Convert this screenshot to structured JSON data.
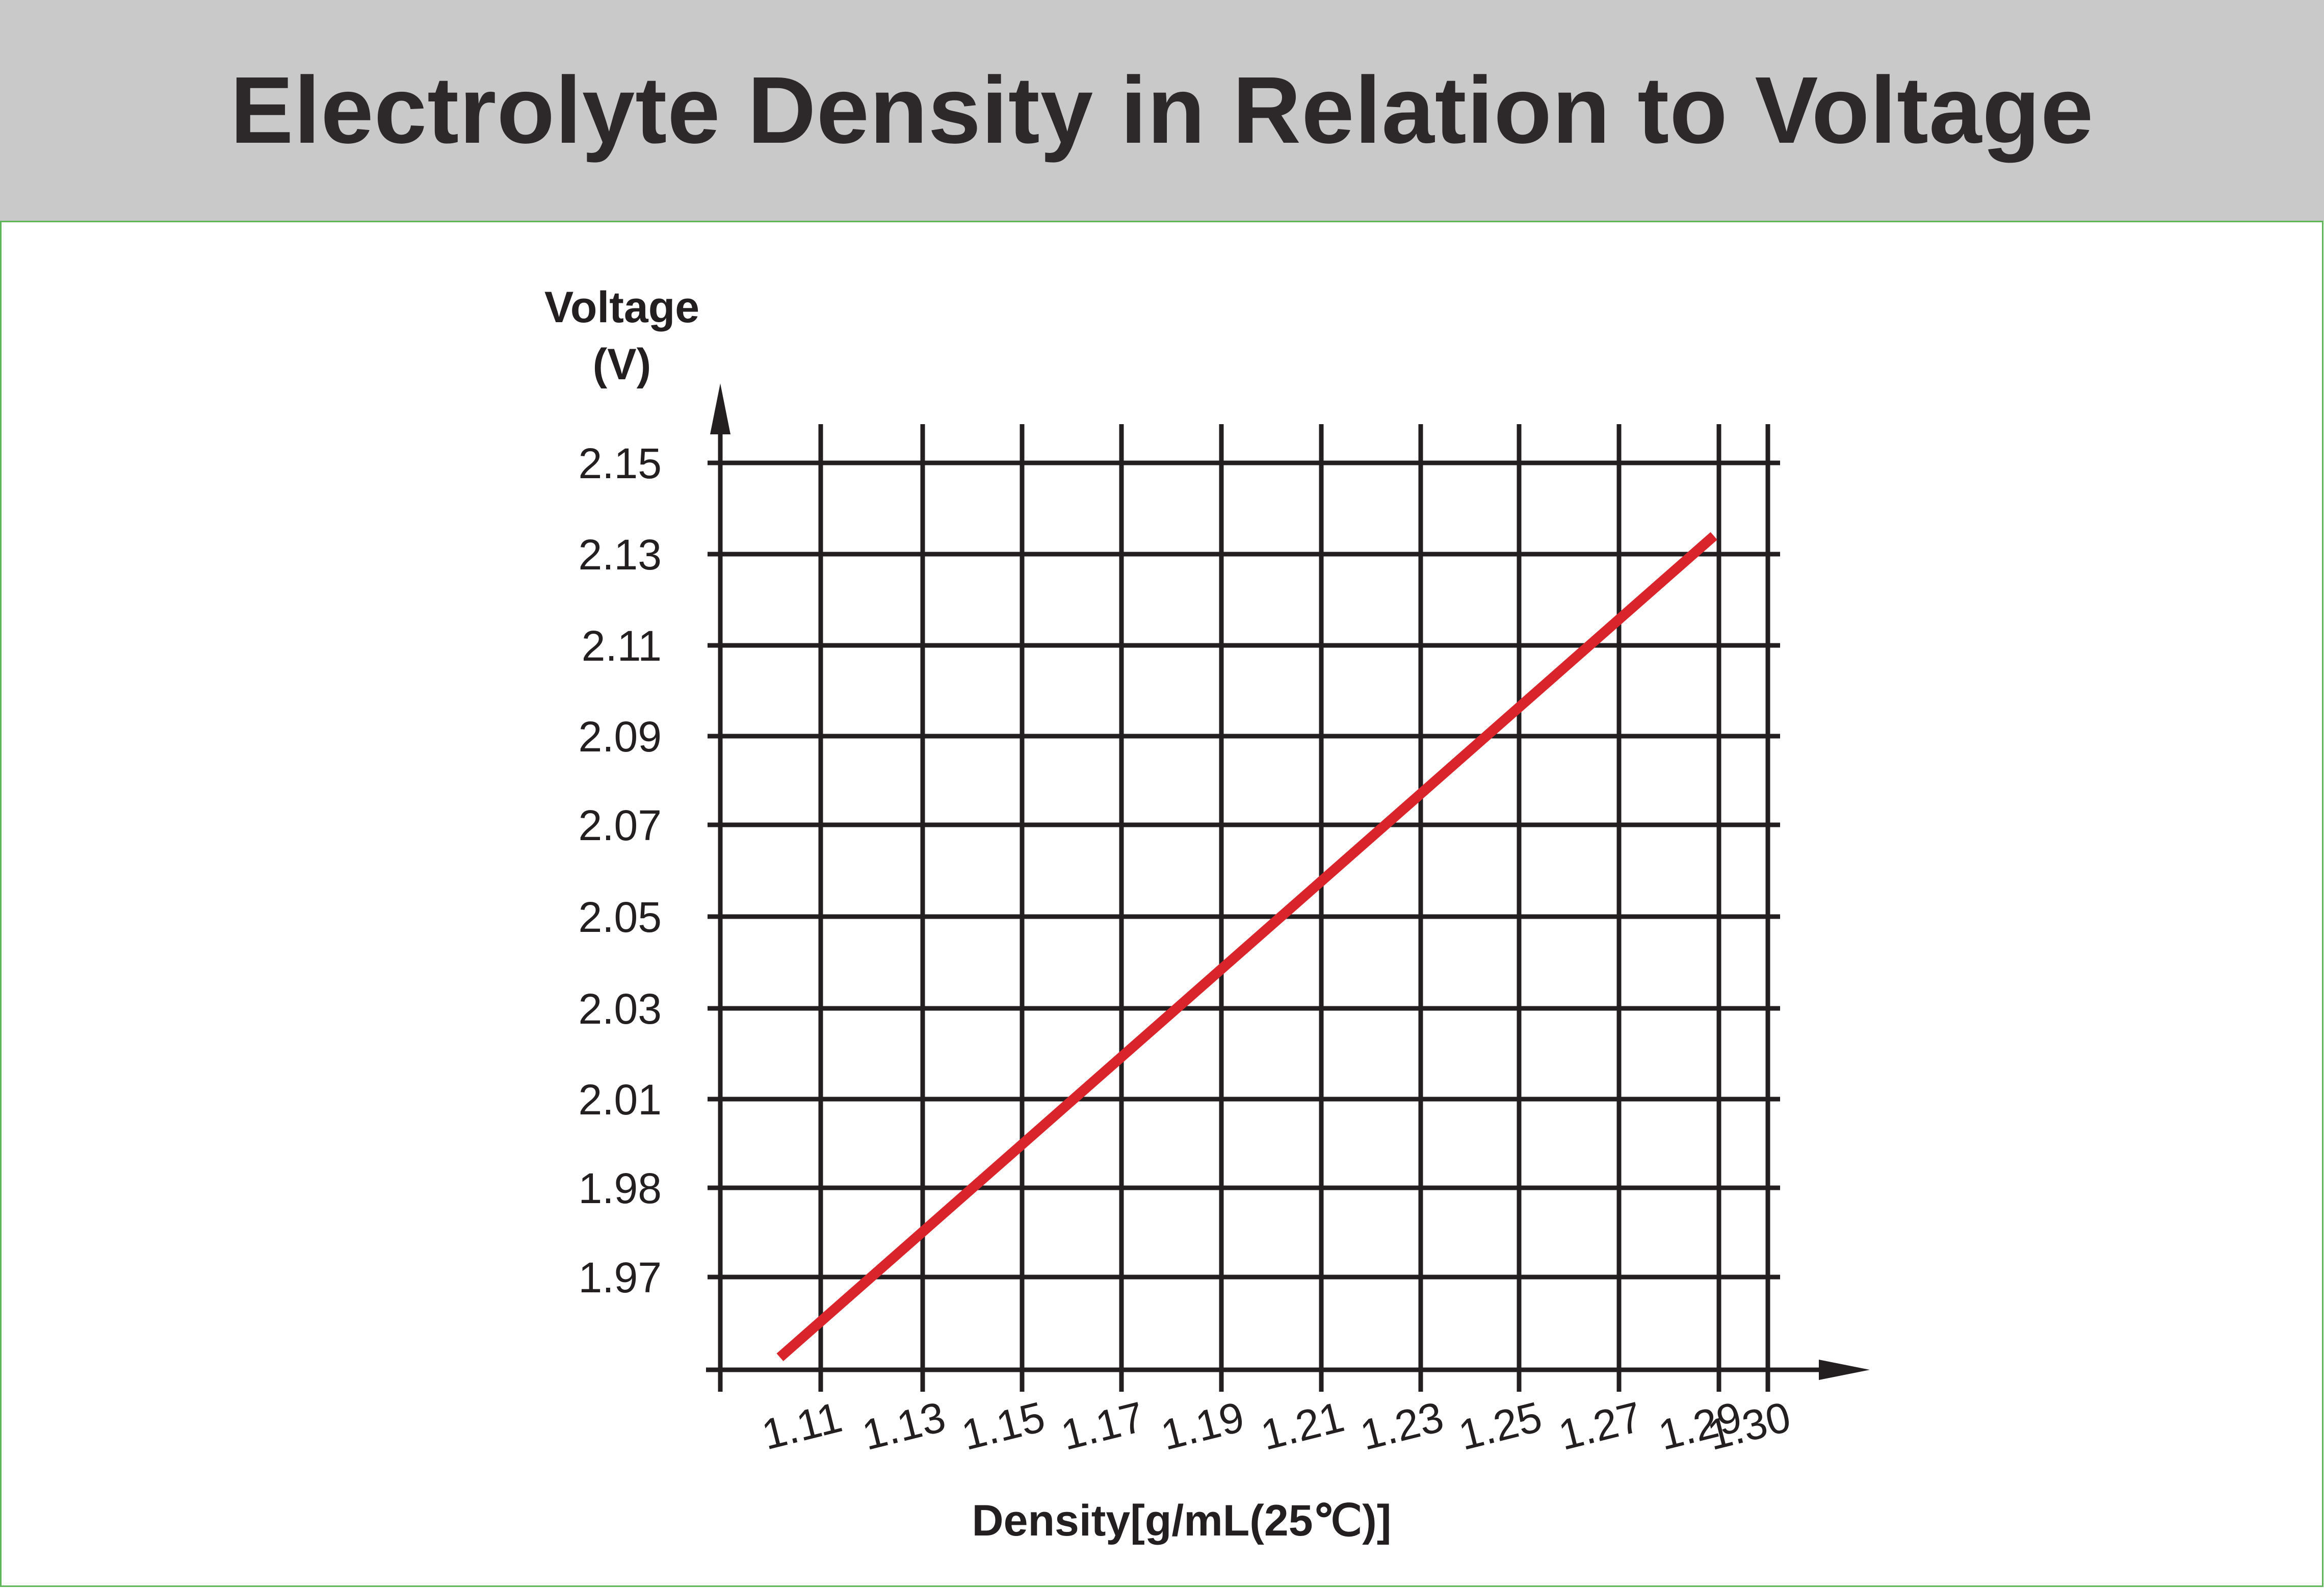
{
  "header": {
    "title": "Electrolyte Density in Relation to Voltage"
  },
  "chart_data": {
    "type": "line",
    "title": "Electrolyte Density in Relation to Voltage",
    "ylabel_line1": "Voltage",
    "ylabel_line2": "(V)",
    "xlabel": "Density[g/mL(25℃)]",
    "x_ticks": [
      "1.11",
      "1.13",
      "1.15",
      "1.17",
      "1.19",
      "1.21",
      "1.23",
      "1.25",
      "1.27",
      "1.29",
      "1.30"
    ],
    "y_ticks": [
      "2.15",
      "2.13",
      "2.11",
      "2.09",
      "2.07",
      "2.05",
      "2.03",
      "2.01",
      "1.98",
      "1.97"
    ],
    "grid": true,
    "series": [
      {
        "color": "#d8242a",
        "points": [
          {
            "x": 1.102,
            "y": 1.961
          },
          {
            "x": 1.289,
            "y": 2.134
          }
        ]
      }
    ],
    "colors": {
      "grid": "#231f20",
      "line": "#d8242a",
      "header_bg": "#c8c9c8",
      "frame_border": "#5fb55a"
    }
  }
}
